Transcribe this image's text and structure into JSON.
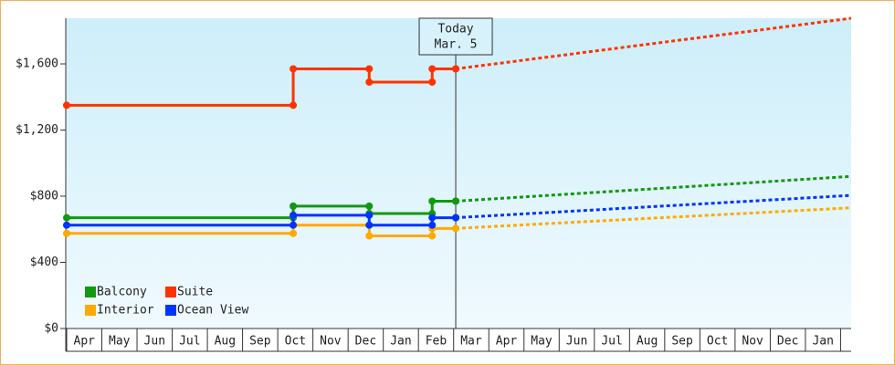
{
  "chart_data": {
    "type": "step-line",
    "xlim": [
      0,
      22.3
    ],
    "ylim": [
      0,
      1876
    ],
    "yticks": [
      {
        "value": 0,
        "label": "$0"
      },
      {
        "value": 400,
        "label": "$400"
      },
      {
        "value": 800,
        "label": "$800"
      },
      {
        "value": 1200,
        "label": "$1,200"
      },
      {
        "value": 1600,
        "label": "$1,600"
      }
    ],
    "xticks": [
      {
        "value": 0.5,
        "label": "Apr"
      },
      {
        "value": 1.5,
        "label": "May"
      },
      {
        "value": 2.5,
        "label": "Jun"
      },
      {
        "value": 3.5,
        "label": "Jul"
      },
      {
        "value": 4.5,
        "label": "Aug"
      },
      {
        "value": 5.5,
        "label": "Sep"
      },
      {
        "value": 6.5,
        "label": "Oct"
      },
      {
        "value": 7.5,
        "label": "Nov"
      },
      {
        "value": 8.5,
        "label": "Dec"
      },
      {
        "value": 9.5,
        "label": "Jan"
      },
      {
        "value": 10.5,
        "label": "Feb"
      },
      {
        "value": 11.5,
        "label": "Mar"
      },
      {
        "value": 12.5,
        "label": "Apr"
      },
      {
        "value": 13.5,
        "label": "May"
      },
      {
        "value": 14.5,
        "label": "Jun"
      },
      {
        "value": 15.5,
        "label": "Jul"
      },
      {
        "value": 16.5,
        "label": "Aug"
      },
      {
        "value": 17.5,
        "label": "Sep"
      },
      {
        "value": 18.5,
        "label": "Oct"
      },
      {
        "value": 19.5,
        "label": "Nov"
      },
      {
        "value": 20.5,
        "label": "Dec"
      },
      {
        "value": 21.5,
        "label": "Jan"
      }
    ],
    "today": {
      "x": 11.06,
      "label": [
        "Today",
        "Mar. 5"
      ]
    },
    "legend": "bottom-left",
    "series": [
      {
        "name": "Balcony",
        "color": "#119911",
        "x": [
          0,
          6.44,
          8.6,
          10.39,
          11.06
        ],
        "values": [
          670,
          740,
          695,
          770,
          770
        ],
        "forecast_x": [
          11.06,
          14,
          17,
          20,
          22.3
        ],
        "forecast_values": [
          770,
          809,
          849,
          889,
          920
        ]
      },
      {
        "name": "Suite",
        "color": "#ff3300",
        "x": [
          0,
          6.44,
          8.6,
          10.39,
          11.06
        ],
        "values": [
          1350,
          1570,
          1490,
          1570,
          1570
        ],
        "forecast_x": [
          11.06,
          14,
          17,
          20,
          22.3
        ],
        "forecast_values": [
          1570,
          1650,
          1732,
          1813,
          1876
        ]
      },
      {
        "name": "Interior",
        "color": "#ffaa00",
        "x": [
          0,
          6.44,
          8.6,
          10.39,
          11.06
        ],
        "values": [
          575,
          625,
          560,
          605,
          605
        ],
        "forecast_x": [
          11.06,
          14,
          17,
          20,
          22.3
        ],
        "forecast_values": [
          605,
          638,
          671,
          704,
          730
        ]
      },
      {
        "name": "Ocean View",
        "color": "#0033ff",
        "x": [
          0,
          6.44,
          8.6,
          10.39,
          11.06
        ],
        "values": [
          625,
          685,
          625,
          670,
          670
        ],
        "forecast_x": [
          11.06,
          14,
          17,
          20,
          22.3
        ],
        "forecast_values": [
          670,
          705,
          741,
          777,
          805
        ]
      }
    ]
  }
}
